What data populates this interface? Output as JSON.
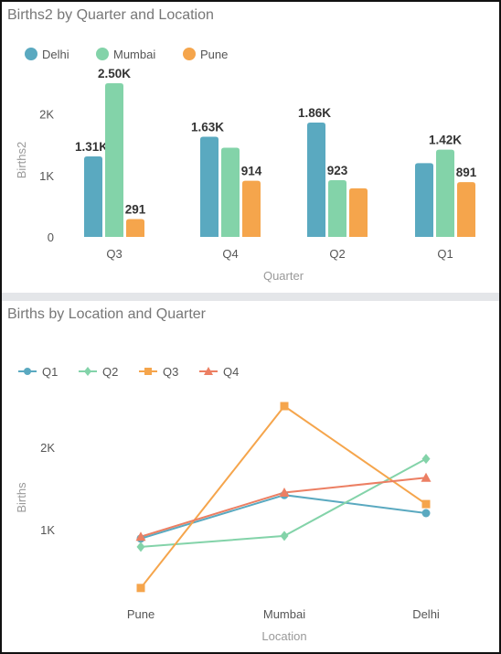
{
  "chart_data": [
    {
      "type": "bar",
      "title": "Births2 by Quarter and Location",
      "xlabel": "Quarter",
      "ylabel": "Births2",
      "categories": [
        "Q3",
        "Q4",
        "Q2",
        "Q1"
      ],
      "ylim": [
        0,
        2500
      ],
      "y_ticks": [
        {
          "v": 0,
          "label": "0"
        },
        {
          "v": 1000,
          "label": "1K"
        },
        {
          "v": 2000,
          "label": "2K"
        }
      ],
      "legend_position": "top-left",
      "grid": false,
      "series": [
        {
          "name": "Delhi",
          "color": "#5aa9c0",
          "values": [
            1310,
            1630,
            1860,
            1200
          ],
          "labels": [
            "1.31K",
            "1.63K",
            "1.86K",
            ""
          ]
        },
        {
          "name": "Mumbai",
          "color": "#83d3a9",
          "values": [
            2500,
            1450,
            923,
            1420
          ],
          "labels": [
            "2.50K",
            "",
            "923",
            "1.42K"
          ]
        },
        {
          "name": "Pune",
          "color": "#f5a54c",
          "values": [
            291,
            914,
            790,
            891
          ],
          "labels": [
            "291",
            "914",
            "",
            "891"
          ]
        }
      ]
    },
    {
      "type": "line",
      "title": "Births by Location and Quarter",
      "xlabel": "Location",
      "ylabel": "Births",
      "categories": [
        "Pune",
        "Mumbai",
        "Delhi"
      ],
      "ylim": [
        0,
        3000
      ],
      "y_ticks": [
        {
          "v": 1000,
          "label": "1K"
        },
        {
          "v": 2000,
          "label": "2K"
        }
      ],
      "legend_position": "top-left",
      "grid": false,
      "series": [
        {
          "name": "Q1",
          "color": "#5aa9c0",
          "marker": "circle",
          "values": [
            891,
            1420,
            1200
          ]
        },
        {
          "name": "Q2",
          "color": "#83d3a9",
          "marker": "diamond",
          "values": [
            790,
            923,
            1860
          ]
        },
        {
          "name": "Q3",
          "color": "#f5a54c",
          "marker": "square",
          "values": [
            291,
            2500,
            1310
          ]
        },
        {
          "name": "Q4",
          "color": "#ec7f63",
          "marker": "triangle",
          "values": [
            914,
            1450,
            1630
          ]
        }
      ]
    }
  ]
}
